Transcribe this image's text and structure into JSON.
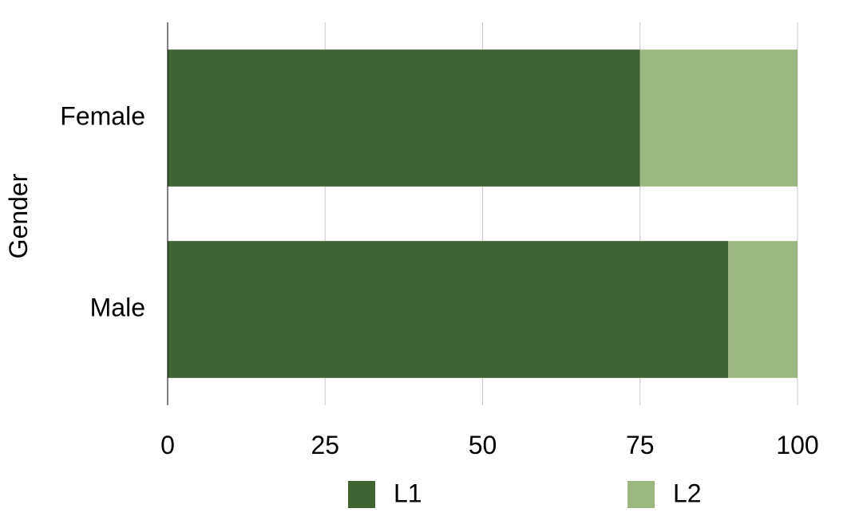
{
  "chart_data": {
    "type": "bar",
    "orientation": "horizontal",
    "stacked": true,
    "categories": [
      "Female",
      "Male"
    ],
    "series": [
      {
        "name": "L1",
        "values": [
          75,
          89
        ],
        "color": "#416232"
      },
      {
        "name": "L2",
        "values": [
          25,
          11
        ],
        "color": "#9cb77f"
      }
    ],
    "xlim": [
      0,
      100
    ],
    "xticks": [
      0,
      25,
      50,
      75,
      100
    ],
    "xlabel": "",
    "ylabel": "Gender",
    "grid": true,
    "legend": "bottom"
  }
}
